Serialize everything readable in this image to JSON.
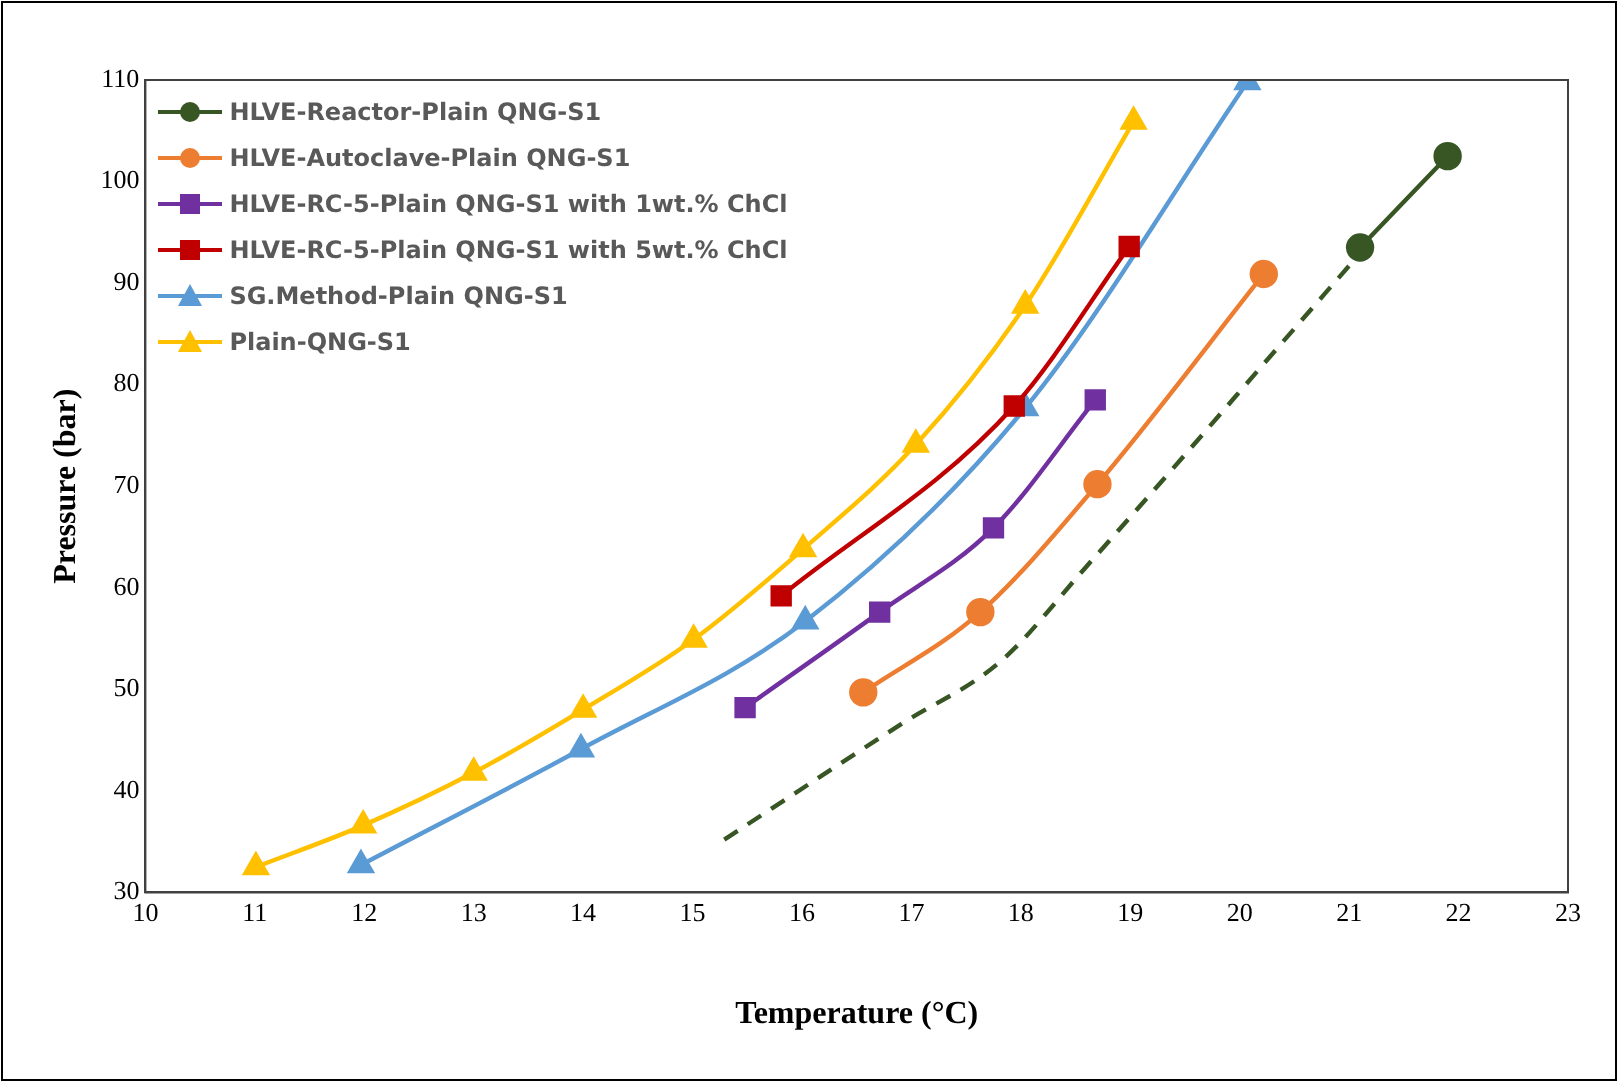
{
  "chart_data": {
    "type": "line",
    "xlabel": "Temperature (°C)",
    "ylabel": "Pressure (bar)",
    "xlim": [
      10,
      23
    ],
    "ylim": [
      30,
      110
    ],
    "xticks": [
      10,
      11,
      12,
      13,
      14,
      15,
      16,
      17,
      18,
      19,
      20,
      21,
      22,
      23
    ],
    "yticks": [
      30,
      40,
      50,
      60,
      70,
      80,
      90,
      100,
      110
    ],
    "grid": false,
    "legend": "top left",
    "series": [
      {
        "name": "HLVE-Reactor-Plain QNG-S1",
        "color": "#375623",
        "marker": "circle",
        "x": [
          21.1,
          21.9
        ],
        "values": [
          93.5,
          102.5
        ]
      },
      {
        "name": "HLVE-Autoclave-Plain QNG-S1",
        "color": "#ed7d31",
        "marker": "circle",
        "x": [
          16.56,
          17.63,
          18.7,
          20.22
        ],
        "values": [
          49.7,
          57.6,
          70.2,
          90.9
        ]
      },
      {
        "name": "HLVE-RC-5-Plain QNG-S1 with 1wt.% ChCl",
        "color": "#7030a0",
        "marker": "square",
        "x": [
          15.48,
          16.71,
          17.75,
          18.68
        ],
        "values": [
          48.2,
          57.6,
          65.9,
          78.5
        ]
      },
      {
        "name": "HLVE-RC-5-Plain QNG-S1 with 5wt.% ChCl",
        "color": "#c00000",
        "marker": "square",
        "x": [
          15.81,
          17.94,
          18.99
        ],
        "values": [
          59.2,
          77.9,
          93.6
        ]
      },
      {
        "name": "SG.Method-Plain QNG-S1",
        "color": "#5b9bd5",
        "marker": "triangle",
        "x": [
          11.97,
          13.98,
          16.03,
          18.04,
          20.07
        ],
        "values": [
          32.7,
          44.1,
          56.7,
          77.7,
          109.8
        ]
      },
      {
        "name": "Plain-QNG-S1",
        "color": "#ffc000",
        "marker": "triangle",
        "x": [
          11.01,
          11.99,
          13.0,
          14.0,
          15.01,
          16.01,
          17.04,
          18.04,
          19.03
        ],
        "values": [
          32.5,
          36.6,
          41.8,
          48.0,
          54.9,
          63.8,
          74.1,
          87.8,
          105.9
        ]
      },
      {
        "color": "#375623",
        "marker": "none",
        "line_style": "dashed",
        "x": [
          15.29,
          16.91,
          17.82,
          18.6,
          19.5,
          20.28,
          21.04
        ],
        "values": [
          35.2,
          46.6,
          52.8,
          62.1,
          73.1,
          82.8,
          92.2
        ]
      }
    ]
  }
}
